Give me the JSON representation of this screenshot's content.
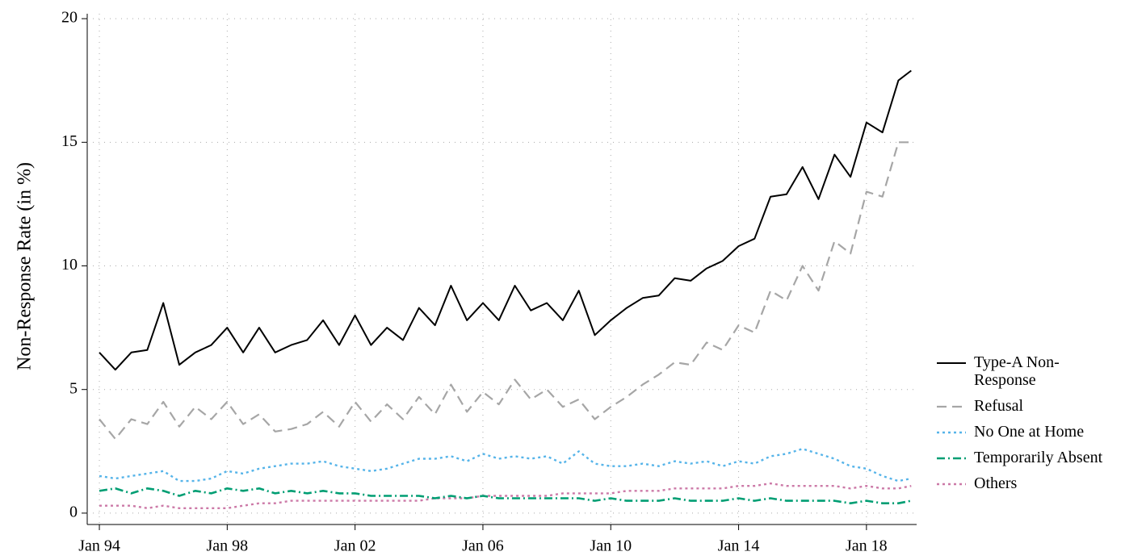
{
  "chart_data": {
    "type": "line",
    "ylabel": "Non-Response Rate (in %)",
    "x": [
      1994,
      1994.5,
      1995,
      1995.5,
      1996,
      1996.5,
      1997,
      1997.5,
      1998,
      1998.5,
      1999,
      1999.5,
      2000,
      2000.5,
      2001,
      2001.5,
      2002,
      2002.5,
      2003,
      2003.5,
      2004,
      2004.5,
      2005,
      2005.5,
      2006,
      2006.5,
      2007,
      2007.5,
      2008,
      2008.5,
      2009,
      2009.5,
      2010,
      2010.5,
      2011,
      2011.5,
      2012,
      2012.5,
      2013,
      2013.5,
      2014,
      2014.5,
      2015,
      2015.5,
      2016,
      2016.5,
      2017,
      2017.5,
      2018,
      2018.5,
      2019,
      2019.4
    ],
    "xlim": [
      1993.62,
      2019.57
    ],
    "xticks": [
      {
        "value": 1994,
        "label": "Jan 94"
      },
      {
        "value": 1998,
        "label": "Jan 98"
      },
      {
        "value": 2002,
        "label": "Jan 02"
      },
      {
        "value": 2006,
        "label": "Jan 06"
      },
      {
        "value": 2010,
        "label": "Jan 10"
      },
      {
        "value": 2014,
        "label": "Jan 14"
      },
      {
        "value": 2018,
        "label": "Jan 18"
      }
    ],
    "ylim": [
      -0.46,
      20.2
    ],
    "yticks": [
      0,
      5,
      10,
      15,
      20
    ],
    "grid": true,
    "legend": "right",
    "series": [
      {
        "name": "Type-A Non-Response",
        "color": "#000000",
        "dash": "solid",
        "values": [
          6.5,
          5.8,
          6.5,
          6.6,
          8.5,
          6.0,
          6.5,
          6.8,
          7.5,
          6.5,
          7.5,
          6.5,
          6.8,
          7.0,
          7.8,
          6.8,
          8.0,
          6.8,
          7.5,
          7.0,
          8.3,
          7.6,
          9.2,
          7.8,
          8.5,
          7.8,
          9.2,
          8.2,
          8.5,
          7.8,
          9.0,
          7.2,
          7.8,
          8.3,
          8.7,
          8.8,
          9.5,
          9.4,
          9.9,
          10.2,
          10.8,
          11.1,
          12.8,
          12.9,
          14.0,
          12.7,
          14.5,
          13.6,
          15.8,
          15.4,
          17.5,
          17.9
        ]
      },
      {
        "name": "Refusal",
        "color": "#a6a6a6",
        "dash": "dashed",
        "values": [
          3.8,
          3.0,
          3.8,
          3.6,
          4.5,
          3.5,
          4.3,
          3.8,
          4.5,
          3.6,
          4.0,
          3.3,
          3.4,
          3.6,
          4.1,
          3.5,
          4.5,
          3.7,
          4.4,
          3.8,
          4.7,
          4.0,
          5.2,
          4.1,
          4.9,
          4.4,
          5.4,
          4.6,
          5.0,
          4.3,
          4.6,
          3.8,
          4.3,
          4.7,
          5.2,
          5.6,
          6.1,
          6.0,
          6.9,
          6.6,
          7.6,
          7.3,
          9.0,
          8.6,
          10.0,
          9.0,
          11.0,
          10.5,
          13.0,
          12.8,
          15.0,
          15.0
        ]
      },
      {
        "name": "No One at Home",
        "color": "#56b4e9",
        "dash": "dotted",
        "values": [
          1.5,
          1.4,
          1.5,
          1.6,
          1.7,
          1.3,
          1.3,
          1.4,
          1.7,
          1.6,
          1.8,
          1.9,
          2.0,
          2.0,
          2.1,
          1.9,
          1.8,
          1.7,
          1.8,
          2.0,
          2.2,
          2.2,
          2.3,
          2.1,
          2.4,
          2.2,
          2.3,
          2.2,
          2.3,
          2.0,
          2.5,
          2.0,
          1.9,
          1.9,
          2.0,
          1.9,
          2.1,
          2.0,
          2.1,
          1.9,
          2.1,
          2.0,
          2.3,
          2.4,
          2.6,
          2.4,
          2.2,
          1.9,
          1.8,
          1.5,
          1.3,
          1.4
        ]
      },
      {
        "name": "Temporarily Absent",
        "color": "#009e73",
        "dash": "dashdot",
        "values": [
          0.9,
          1.0,
          0.8,
          1.0,
          0.9,
          0.7,
          0.9,
          0.8,
          1.0,
          0.9,
          1.0,
          0.8,
          0.9,
          0.8,
          0.9,
          0.8,
          0.8,
          0.7,
          0.7,
          0.7,
          0.7,
          0.6,
          0.7,
          0.6,
          0.7,
          0.6,
          0.6,
          0.6,
          0.6,
          0.6,
          0.6,
          0.5,
          0.6,
          0.5,
          0.5,
          0.5,
          0.6,
          0.5,
          0.5,
          0.5,
          0.6,
          0.5,
          0.6,
          0.5,
          0.5,
          0.5,
          0.5,
          0.4,
          0.5,
          0.4,
          0.4,
          0.5
        ]
      },
      {
        "name": "Others",
        "color": "#cc79a7",
        "dash": "dotted",
        "values": [
          0.3,
          0.3,
          0.3,
          0.2,
          0.3,
          0.2,
          0.2,
          0.2,
          0.2,
          0.3,
          0.4,
          0.4,
          0.5,
          0.5,
          0.5,
          0.5,
          0.5,
          0.5,
          0.5,
          0.5,
          0.5,
          0.6,
          0.6,
          0.6,
          0.7,
          0.7,
          0.7,
          0.7,
          0.7,
          0.8,
          0.8,
          0.8,
          0.8,
          0.9,
          0.9,
          0.9,
          1.0,
          1.0,
          1.0,
          1.0,
          1.1,
          1.1,
          1.2,
          1.1,
          1.1,
          1.1,
          1.1,
          1.0,
          1.1,
          1.0,
          1.0,
          1.1
        ]
      }
    ]
  }
}
